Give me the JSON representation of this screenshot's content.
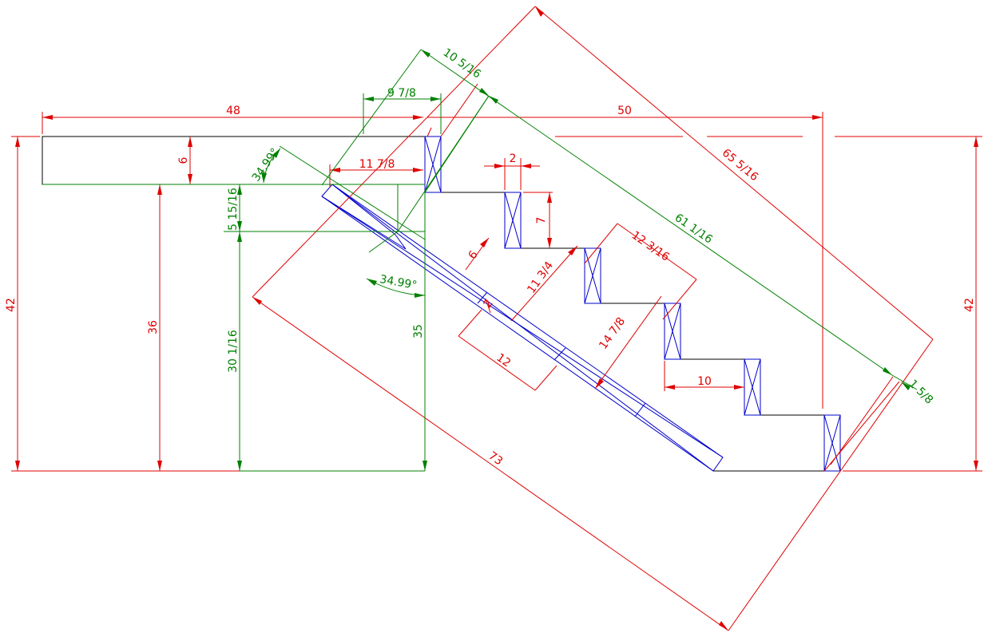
{
  "colors": {
    "outline": "#000000",
    "member": "#0000cc",
    "dimension_red": "#e00000",
    "dimension_green": "#008000",
    "background": "#ffffff"
  },
  "dimensions": {
    "platform_length": "48",
    "platform_thickness": "6",
    "platform_height": "42",
    "platform_support_height": "36",
    "offset_9_7_8": "9 7/8",
    "offset_10_5_16": "10 5/16",
    "offset_11_7_8": "11 7/8",
    "angle_top": "34.99°",
    "angle_bottom": "34.99°",
    "gap_5_15_16": "5 15/16",
    "height_30_1_16": "30 1/16",
    "height_35": "35",
    "tread_post_width": "2",
    "riser": "7",
    "stringer_depth": "6",
    "diag_11_3_4": "11 3/4",
    "step_diag_12_3_16": "12 3/16",
    "member_width_2": "2",
    "segment_12": "12",
    "diag_14_7_8": "14 7/8",
    "tread_run": "10",
    "total_run": "50",
    "slope_length_65_5_16": "65 5/16",
    "stringer_length_61_1_16": "61 1/16",
    "overall_length": "73",
    "end_offset": "1 5/8",
    "right_height": "42"
  }
}
